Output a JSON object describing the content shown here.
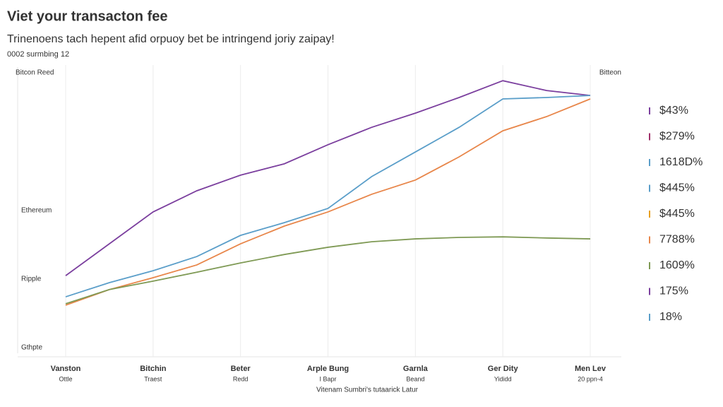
{
  "chart_data": {
    "type": "line",
    "title": "Viet your transacton fee",
    "subtitle": "Trinenoens tach hepent afid orpuoy bet be intringend joriy zaipay!",
    "note": "0002 surmbing 12",
    "corner_label": "Bitteon",
    "y_labels": [
      "Bitcon Reed",
      "Ethereum",
      "Ripple",
      "Gthpte"
    ],
    "x_label": "Vitenam Sumbri's tutaarick Latur",
    "x": [
      0,
      0.5,
      1,
      1.5,
      2,
      2.5,
      3,
      3.5,
      4,
      4.5,
      5,
      5.5,
      6
    ],
    "xlim": [
      0,
      6
    ],
    "xticks": [
      {
        "value": 0,
        "label": "Vanston"
      },
      {
        "value": 1,
        "label": "Bitchin"
      },
      {
        "value": 2,
        "label": "Beter"
      },
      {
        "value": 3,
        "label": "Arple Bung"
      },
      {
        "value": 4,
        "label": "Garnla"
      },
      {
        "value": 5,
        "label": "Ger Dity"
      },
      {
        "value": 6,
        "label": "Men Lev"
      }
    ],
    "x_sublabels": [
      "Ottle",
      "Traest",
      "Redd",
      "I Bapr",
      "Beand",
      "Yididd",
      "20 ppn-4"
    ],
    "ylim": [
      0,
      100
    ],
    "series": [
      {
        "color": "#7b3f9e",
        "values": [
          26.8,
          37.8,
          48.8,
          56.1,
          61.5,
          65.4,
          72,
          78,
          82.9,
          88.3,
          94.1,
          90.7,
          89
        ]
      },
      {
        "color": "#5a9ec9",
        "values": [
          19.5,
          24.4,
          28.5,
          33.4,
          40.7,
          45.1,
          50,
          61,
          69.5,
          78,
          87.8,
          88.3,
          89
        ]
      },
      {
        "color": "#e8864a",
        "values": [
          16.6,
          22,
          26.1,
          30.5,
          37.8,
          43.9,
          48.8,
          54.9,
          59.8,
          67.8,
          76.8,
          81.7,
          87.8
        ]
      },
      {
        "color": "#7f9a55",
        "values": [
          17.1,
          22,
          24.9,
          28,
          31.2,
          34.1,
          36.6,
          38.5,
          39.5,
          40,
          40.2,
          39.8,
          39.5
        ]
      }
    ],
    "side_labels": [
      {
        "text": "$43%",
        "color": "#7b3f9e"
      },
      {
        "text": "$279%",
        "color": "#a0306a"
      },
      {
        "text": "1618D%",
        "color": "#5a9ec9"
      },
      {
        "text": "$445%",
        "color": "#5a9ec9"
      },
      {
        "text": "$445%",
        "color": "#e8a020"
      },
      {
        "text": "7788%",
        "color": "#e8864a"
      },
      {
        "text": "1609%",
        "color": "#7f9a55"
      },
      {
        "text": "175%",
        "color": "#7b3f9e"
      },
      {
        "text": "18%",
        "color": "#5a9ec9"
      }
    ]
  }
}
